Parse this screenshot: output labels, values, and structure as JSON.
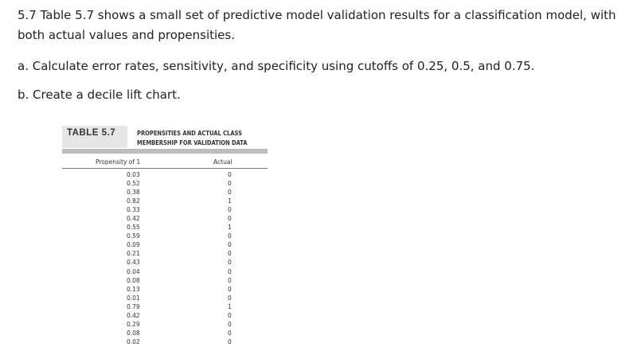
{
  "question": {
    "intro": "5.7 Table 5.7 shows a small set of predictive model validation results for a classification model, with both actual values and propensities.",
    "part_a": "a. Calculate error rates, sensitivity, and specificity using cutoffs of 0.25, 0.5, and 0.75.",
    "part_b": "b. Create a decile lift chart."
  },
  "table": {
    "label": "TABLE 5.7",
    "title_line1": "PROPENSITIES AND ACTUAL CLASS",
    "title_line2": "MEMBERSHIP FOR VALIDATION DATA",
    "columns": [
      "Propensity of 1",
      "Actual"
    ],
    "rows": [
      [
        "0.03",
        "0"
      ],
      [
        "0.52",
        "0"
      ],
      [
        "0.38",
        "0"
      ],
      [
        "0.82",
        "1"
      ],
      [
        "0.33",
        "0"
      ],
      [
        "0.42",
        "0"
      ],
      [
        "0.55",
        "1"
      ],
      [
        "0.59",
        "0"
      ],
      [
        "0.09",
        "0"
      ],
      [
        "0.21",
        "0"
      ],
      [
        "0.43",
        "0"
      ],
      [
        "0.04",
        "0"
      ],
      [
        "0.08",
        "0"
      ],
      [
        "0.13",
        "0"
      ],
      [
        "0.01",
        "0"
      ],
      [
        "0.79",
        "1"
      ],
      [
        "0.42",
        "0"
      ],
      [
        "0.29",
        "0"
      ],
      [
        "0.08",
        "0"
      ],
      [
        "0.02",
        "0"
      ]
    ]
  }
}
